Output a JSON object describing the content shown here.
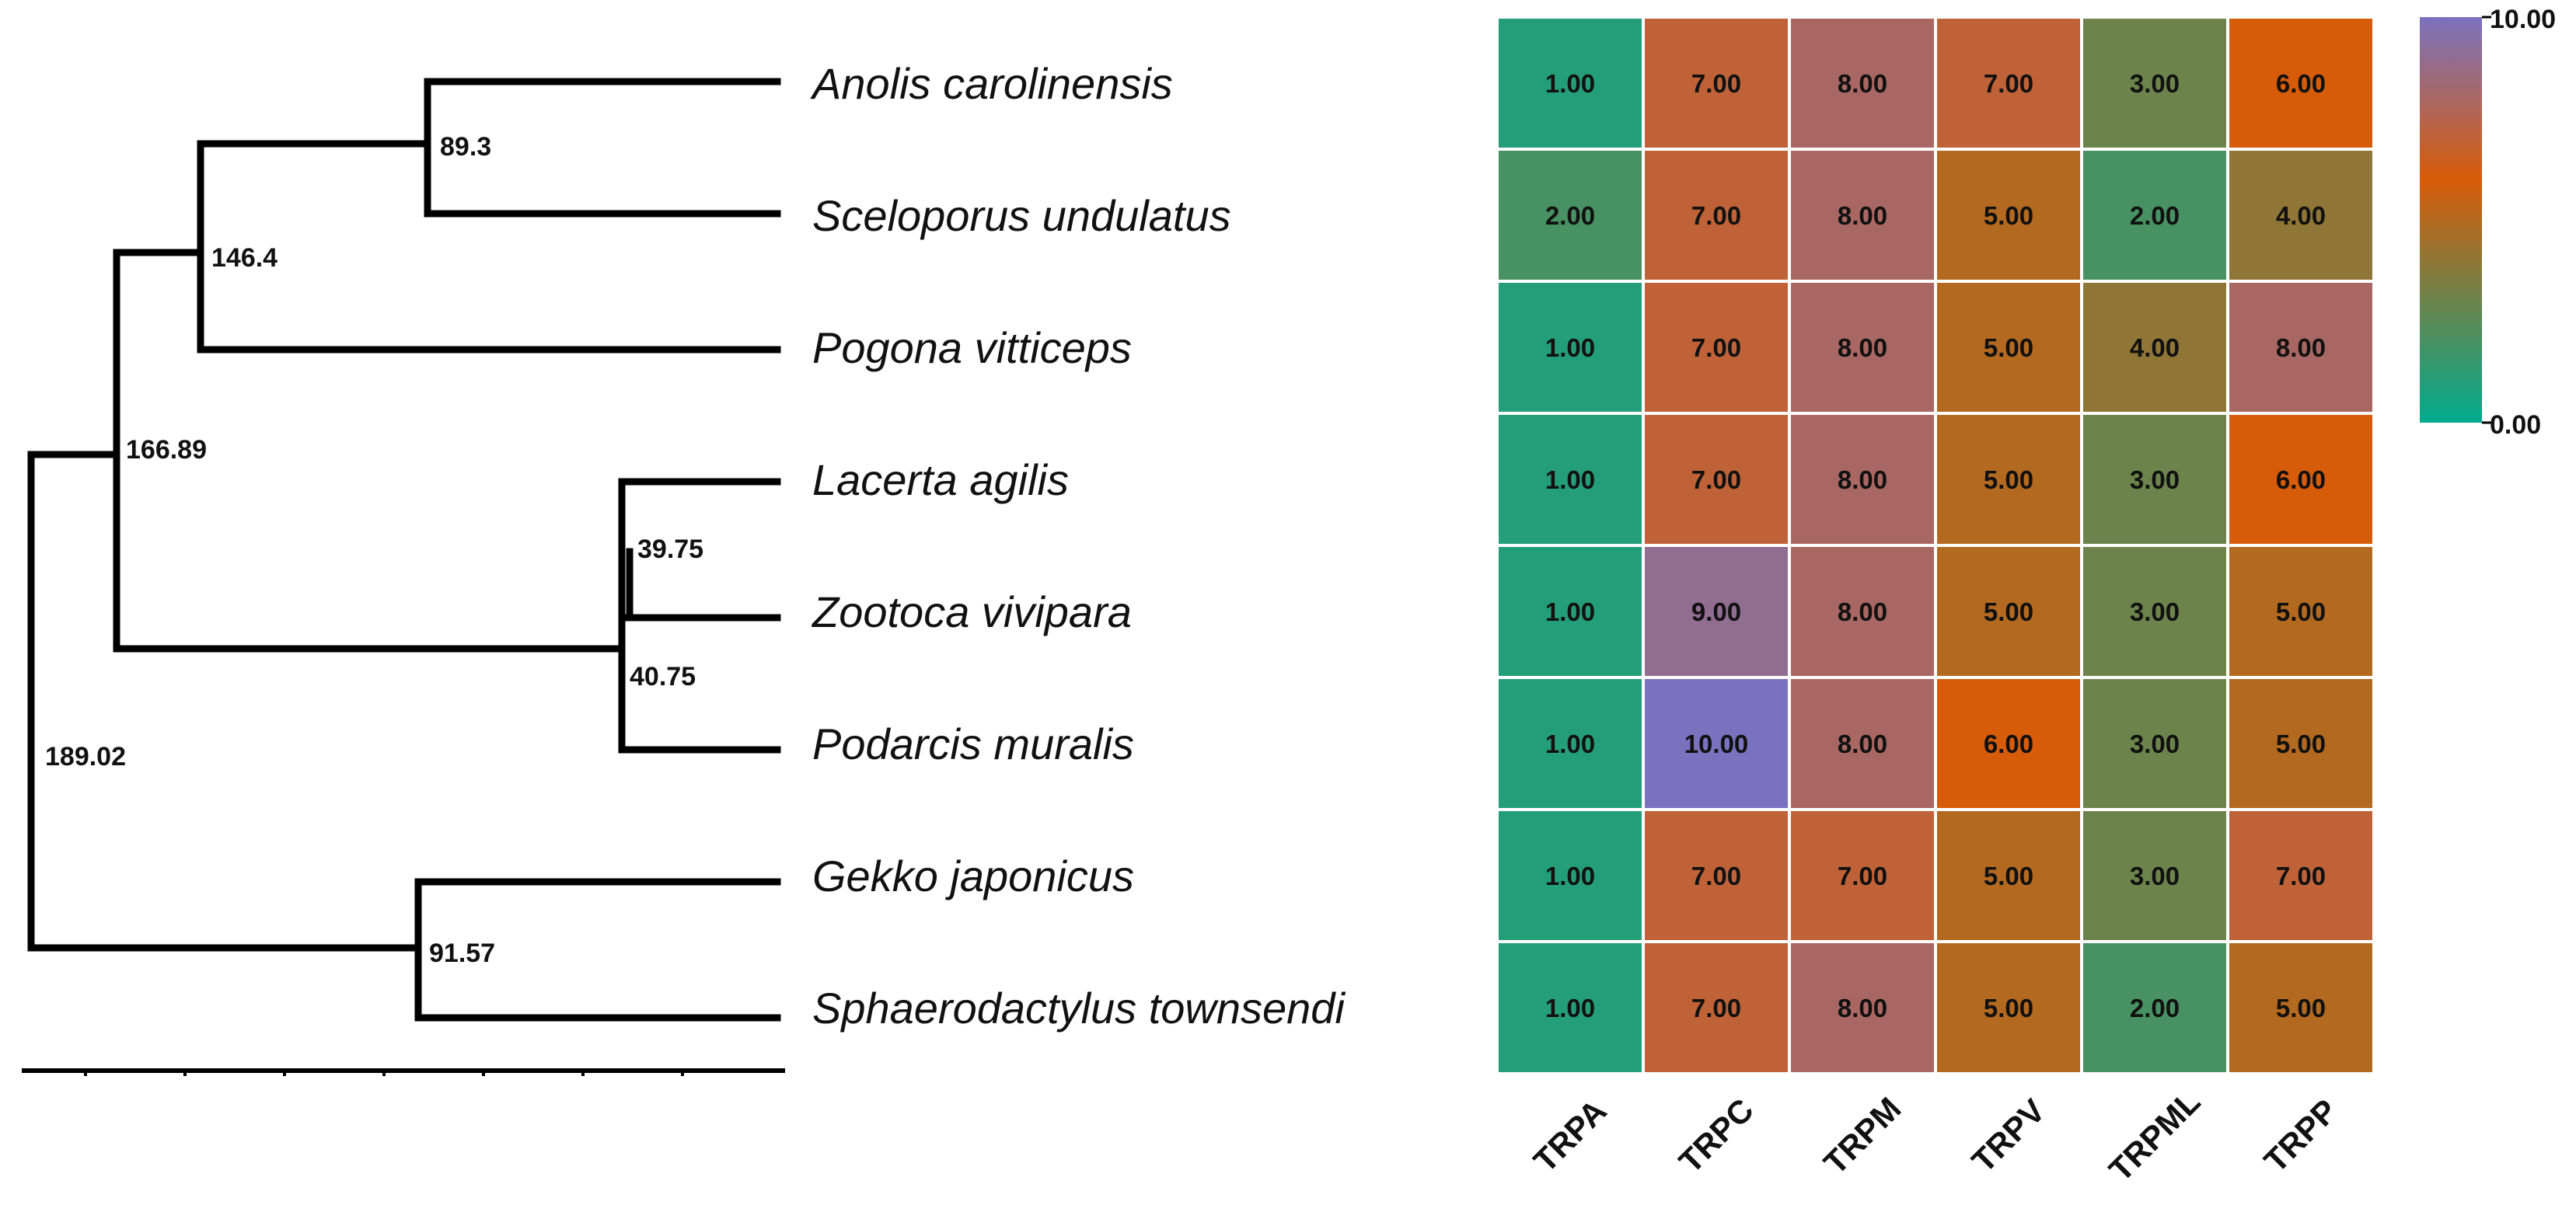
{
  "chart_data": {
    "type": "heatmap",
    "title": "",
    "rows": [
      "Anolis carolinensis",
      "Sceloporus undulatus",
      "Pogona vitticeps",
      "Lacerta agilis",
      "Zootoca vivipara",
      "Podarcis muralis",
      "Gekko japonicus",
      "Sphaerodactylus townsendi"
    ],
    "columns": [
      "TRPA",
      "TRPC",
      "TRPM",
      "TRPV",
      "TRPML",
      "TRPP"
    ],
    "values": [
      [
        1,
        7,
        8,
        7,
        3,
        6
      ],
      [
        2,
        7,
        8,
        5,
        2,
        4
      ],
      [
        1,
        7,
        8,
        5,
        4,
        8
      ],
      [
        1,
        7,
        8,
        5,
        3,
        6
      ],
      [
        1,
        9,
        8,
        5,
        3,
        5
      ],
      [
        1,
        10,
        8,
        6,
        3,
        5
      ],
      [
        1,
        7,
        7,
        5,
        3,
        7
      ],
      [
        1,
        7,
        8,
        5,
        2,
        5
      ]
    ],
    "value_labels": [
      [
        "1.00",
        "7.00",
        "8.00",
        "7.00",
        "3.00",
        "6.00"
      ],
      [
        "2.00",
        "7.00",
        "8.00",
        "5.00",
        "2.00",
        "4.00"
      ],
      [
        "1.00",
        "7.00",
        "8.00",
        "5.00",
        "4.00",
        "8.00"
      ],
      [
        "1.00",
        "7.00",
        "8.00",
        "5.00",
        "3.00",
        "6.00"
      ],
      [
        "1.00",
        "9.00",
        "8.00",
        "5.00",
        "3.00",
        "5.00"
      ],
      [
        "1.00",
        "10.00",
        "8.00",
        "6.00",
        "3.00",
        "5.00"
      ],
      [
        "1.00",
        "7.00",
        "7.00",
        "5.00",
        "3.00",
        "7.00"
      ],
      [
        "1.00",
        "7.00",
        "8.00",
        "5.00",
        "2.00",
        "5.00"
      ]
    ],
    "color_scale": {
      "min": 0,
      "max": 10,
      "min_label": "0.00",
      "max_label": "10.00",
      "stops": [
        {
          "value": 0,
          "color": "#00ab8e"
        },
        {
          "value": 6,
          "color": "#d75c0a"
        },
        {
          "value": 10,
          "color": "#7a72be"
        }
      ]
    },
    "tree": {
      "type": "phylogeny",
      "node_ages": {
        "root": "189.02",
        "iguania_lacertoidea": "166.89",
        "iguania": "146.4",
        "anolis_sceloporus": "89.3",
        "lacertidae_a": "39.75",
        "lacertidae_b": "40.75",
        "gekkota": "91.57"
      }
    }
  }
}
